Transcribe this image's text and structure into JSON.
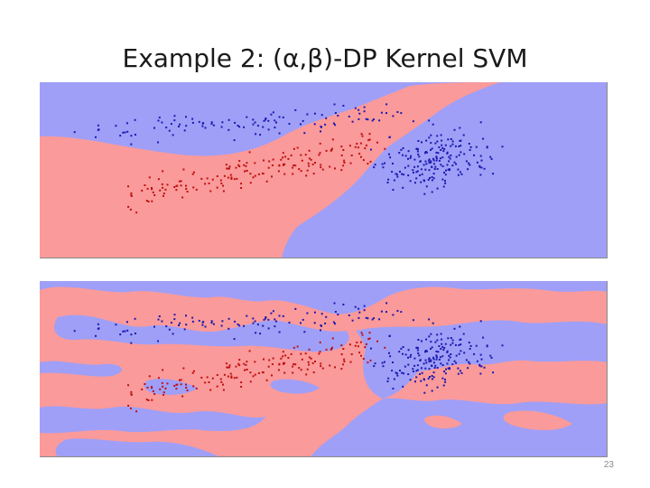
{
  "slide": {
    "title": "Example 2: (α,β)-DP Kernel SVM",
    "page_number": "23"
  },
  "colors": {
    "region_blue": "#9f9ff8",
    "region_red": "#fa9a9a",
    "point_blue": "#1a1ab0",
    "point_red": "#c01010",
    "frame": "#8a8a8a"
  },
  "panels": [
    {
      "name": "top-decision-boundary-plot",
      "boundary": "smooth"
    },
    {
      "name": "bottom-decision-boundary-plot",
      "boundary": "noisy"
    }
  ]
}
